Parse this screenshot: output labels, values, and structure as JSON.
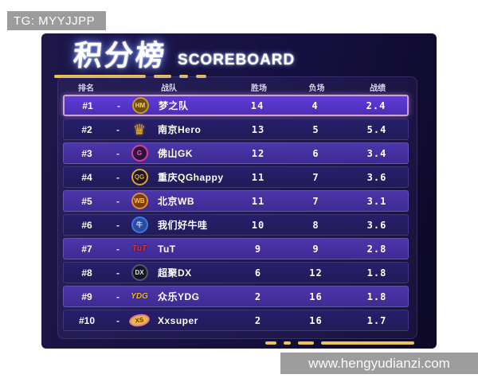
{
  "watermark_top": {
    "text": "TG: MYYJJPP"
  },
  "watermark_bottom": {
    "text": "www.hengyudianzi.com"
  },
  "title": {
    "cn": "积分榜",
    "en": "SCOREBOARD"
  },
  "table": {
    "columns": [
      "排名",
      "战队",
      "胜场",
      "负场",
      "战绩"
    ],
    "rows": [
      {
        "rank": "#1",
        "sep": "-",
        "team": "梦之队",
        "wins": "14",
        "losses": "4",
        "record": "2.4",
        "highlighted": true,
        "logo": {
          "label": "HM",
          "style": "circle",
          "ring": "#c9992a",
          "bg": "#6b4e0e",
          "color": "#f5d36a",
          "name": "dream-team-hm-logo"
        }
      },
      {
        "rank": "#2",
        "sep": "-",
        "team": "南京Hero",
        "wins": "13",
        "losses": "5",
        "record": "5.4",
        "logo": {
          "label": "♛",
          "style": "glyph",
          "color": "#d9a62e",
          "name": "nanjing-hero-crown-logo"
        }
      },
      {
        "rank": "#3",
        "sep": "-",
        "team": "佛山GK",
        "wins": "12",
        "losses": "6",
        "record": "3.4",
        "logo": {
          "label": "G",
          "style": "circle",
          "ring": "#e03d8c",
          "bg": "#2a1140",
          "color": "#e86aa8",
          "name": "foshan-gk-logo"
        }
      },
      {
        "rank": "#4",
        "sep": "-",
        "team": "重庆QGhappy",
        "wins": "11",
        "losses": "7",
        "record": "3.6",
        "logo": {
          "label": "QG",
          "style": "circle",
          "ring": "#d9a62e",
          "bg": "#1c1430",
          "color": "#d9a62e",
          "name": "chongqing-qghappy-logo"
        }
      },
      {
        "rank": "#5",
        "sep": "-",
        "team": "北京WB",
        "wins": "11",
        "losses": "7",
        "record": "3.1",
        "logo": {
          "label": "WB",
          "style": "circle",
          "ring": "#e8872a",
          "bg": "#7a3c08",
          "color": "#ffc04a",
          "name": "beijing-wb-logo"
        }
      },
      {
        "rank": "#6",
        "sep": "-",
        "team": "我们好牛哇",
        "wins": "10",
        "losses": "8",
        "record": "3.6",
        "logo": {
          "label": "牛",
          "style": "circle",
          "ring": "#3a7ae0",
          "bg": "#2a4a9e",
          "color": "#cfe2ff",
          "name": "blue-bull-mascot-logo"
        }
      },
      {
        "rank": "#7",
        "sep": "-",
        "team": "TuT",
        "wins": "9",
        "losses": "9",
        "record": "2.8",
        "logo": {
          "label": "TuT",
          "style": "text",
          "color": "#e03428",
          "name": "tut-logo"
        }
      },
      {
        "rank": "#8",
        "sep": "-",
        "team": "超聚DX",
        "wins": "6",
        "losses": "12",
        "record": "1.8",
        "logo": {
          "label": "DX",
          "style": "circle",
          "ring": "#555566",
          "bg": "#16161f",
          "color": "#dddde8",
          "name": "dx-panda-mascot-logo"
        }
      },
      {
        "rank": "#9",
        "sep": "-",
        "team": "众乐YDG",
        "wins": "2",
        "losses": "16",
        "record": "1.8",
        "logo": {
          "label": "YDG",
          "style": "text",
          "color": "#e8b93a",
          "name": "ydg-logo"
        }
      },
      {
        "rank": "#10",
        "sep": "-",
        "team": "Xxsuper",
        "wins": "2",
        "losses": "16",
        "record": "1.7",
        "logo": {
          "label": "XS",
          "style": "ellipse",
          "ring": "#e07a9a",
          "bg": "#e8b93a",
          "color": "#7a2a10",
          "name": "xs-planet-logo"
        }
      }
    ]
  },
  "chart_data": {
    "type": "table",
    "title": "积分榜 SCOREBOARD",
    "columns": [
      "排名",
      "战队",
      "胜场",
      "负场",
      "战绩"
    ],
    "rows": [
      [
        "#1",
        "梦之队",
        14,
        4,
        2.4
      ],
      [
        "#2",
        "南京Hero",
        13,
        5,
        5.4
      ],
      [
        "#3",
        "佛山GK",
        12,
        6,
        3.4
      ],
      [
        "#4",
        "重庆QGhappy",
        11,
        7,
        3.6
      ],
      [
        "#5",
        "北京WB",
        11,
        7,
        3.1
      ],
      [
        "#6",
        "我们好牛哇",
        10,
        8,
        3.6
      ],
      [
        "#7",
        "TuT",
        9,
        9,
        2.8
      ],
      [
        "#8",
        "超聚DX",
        6,
        12,
        1.8
      ],
      [
        "#9",
        "众乐YDG",
        2,
        16,
        1.8
      ],
      [
        "#10",
        "Xxsuper",
        2,
        16,
        1.7
      ]
    ]
  },
  "colors": {
    "accent": "#ecc550",
    "panel-from": "#1e1748",
    "panel-to": "#0d0927",
    "row-top": "#5d3cd8",
    "row-top-border": "#d2a0da"
  }
}
